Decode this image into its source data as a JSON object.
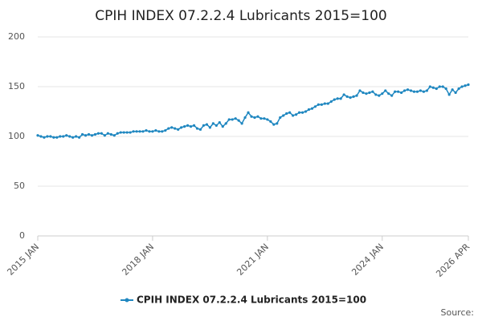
{
  "chart_data": {
    "type": "line",
    "title": "CPIH INDEX 07.2.2.4 Lubricants 2015=100",
    "source": "Source:",
    "categories": [
      "2015 JAN",
      null,
      null,
      null,
      null,
      null,
      null,
      null,
      null,
      null,
      null,
      null,
      null,
      null,
      null,
      null,
      null,
      null,
      null,
      null,
      null,
      null,
      null,
      null,
      null,
      null,
      null,
      null,
      null,
      null,
      null,
      null,
      null,
      null,
      null,
      null,
      "2018 JAN",
      null,
      null,
      null,
      null,
      null,
      null,
      null,
      null,
      null,
      null,
      null,
      null,
      null,
      null,
      null,
      null,
      null,
      null,
      null,
      null,
      null,
      null,
      null,
      null,
      null,
      null,
      null,
      null,
      null,
      null,
      null,
      null,
      null,
      null,
      null,
      "2021 JAN",
      null,
      null,
      null,
      null,
      null,
      null,
      null,
      null,
      null,
      null,
      null,
      null,
      null,
      null,
      null,
      null,
      null,
      null,
      null,
      null,
      null,
      null,
      null,
      null,
      null,
      null,
      null,
      null,
      null,
      null,
      null,
      null,
      null,
      null,
      null,
      "2024 JAN",
      null,
      null,
      null,
      null,
      null,
      null,
      null,
      null,
      null,
      null,
      null,
      null,
      null,
      null,
      null,
      null,
      null,
      null,
      null,
      null,
      null,
      null,
      null,
      null,
      null,
      null,
      "2026 APR"
    ],
    "series": [
      {
        "name": "CPIH INDEX 07.2.2.4 Lubricants 2015=100",
        "color": "#1f87c0",
        "values": [
          101,
          100,
          99,
          100,
          100,
          99,
          99,
          100,
          100,
          101,
          100,
          99,
          100,
          99,
          102,
          101,
          102,
          101,
          102,
          103,
          103,
          101,
          103,
          102,
          101,
          103,
          104,
          104,
          104,
          104,
          105,
          105,
          105,
          105,
          106,
          105,
          105,
          106,
          105,
          105,
          106,
          108,
          109,
          108,
          107,
          109,
          110,
          111,
          110,
          111,
          108,
          107,
          111,
          112,
          109,
          113,
          111,
          114,
          110,
          113,
          117,
          117,
          118,
          116,
          113,
          119,
          124,
          120,
          119,
          120,
          118,
          118,
          117,
          115,
          112,
          113,
          119,
          121,
          123,
          124,
          121,
          122,
          124,
          124,
          125,
          127,
          128,
          130,
          132,
          132,
          133,
          133,
          135,
          137,
          138,
          138,
          142,
          140,
          139,
          140,
          141,
          146,
          144,
          143,
          144,
          145,
          142,
          141,
          143,
          146,
          143,
          141,
          145,
          145,
          144,
          146,
          147,
          146,
          145,
          145,
          146,
          145,
          146,
          150,
          149,
          148,
          150,
          150,
          148,
          142,
          147,
          144,
          148,
          150,
          151,
          152
        ]
      }
    ],
    "ylim": [
      0,
      200
    ],
    "yticks": [
      0,
      50,
      100,
      150,
      200
    ],
    "grid": true
  }
}
